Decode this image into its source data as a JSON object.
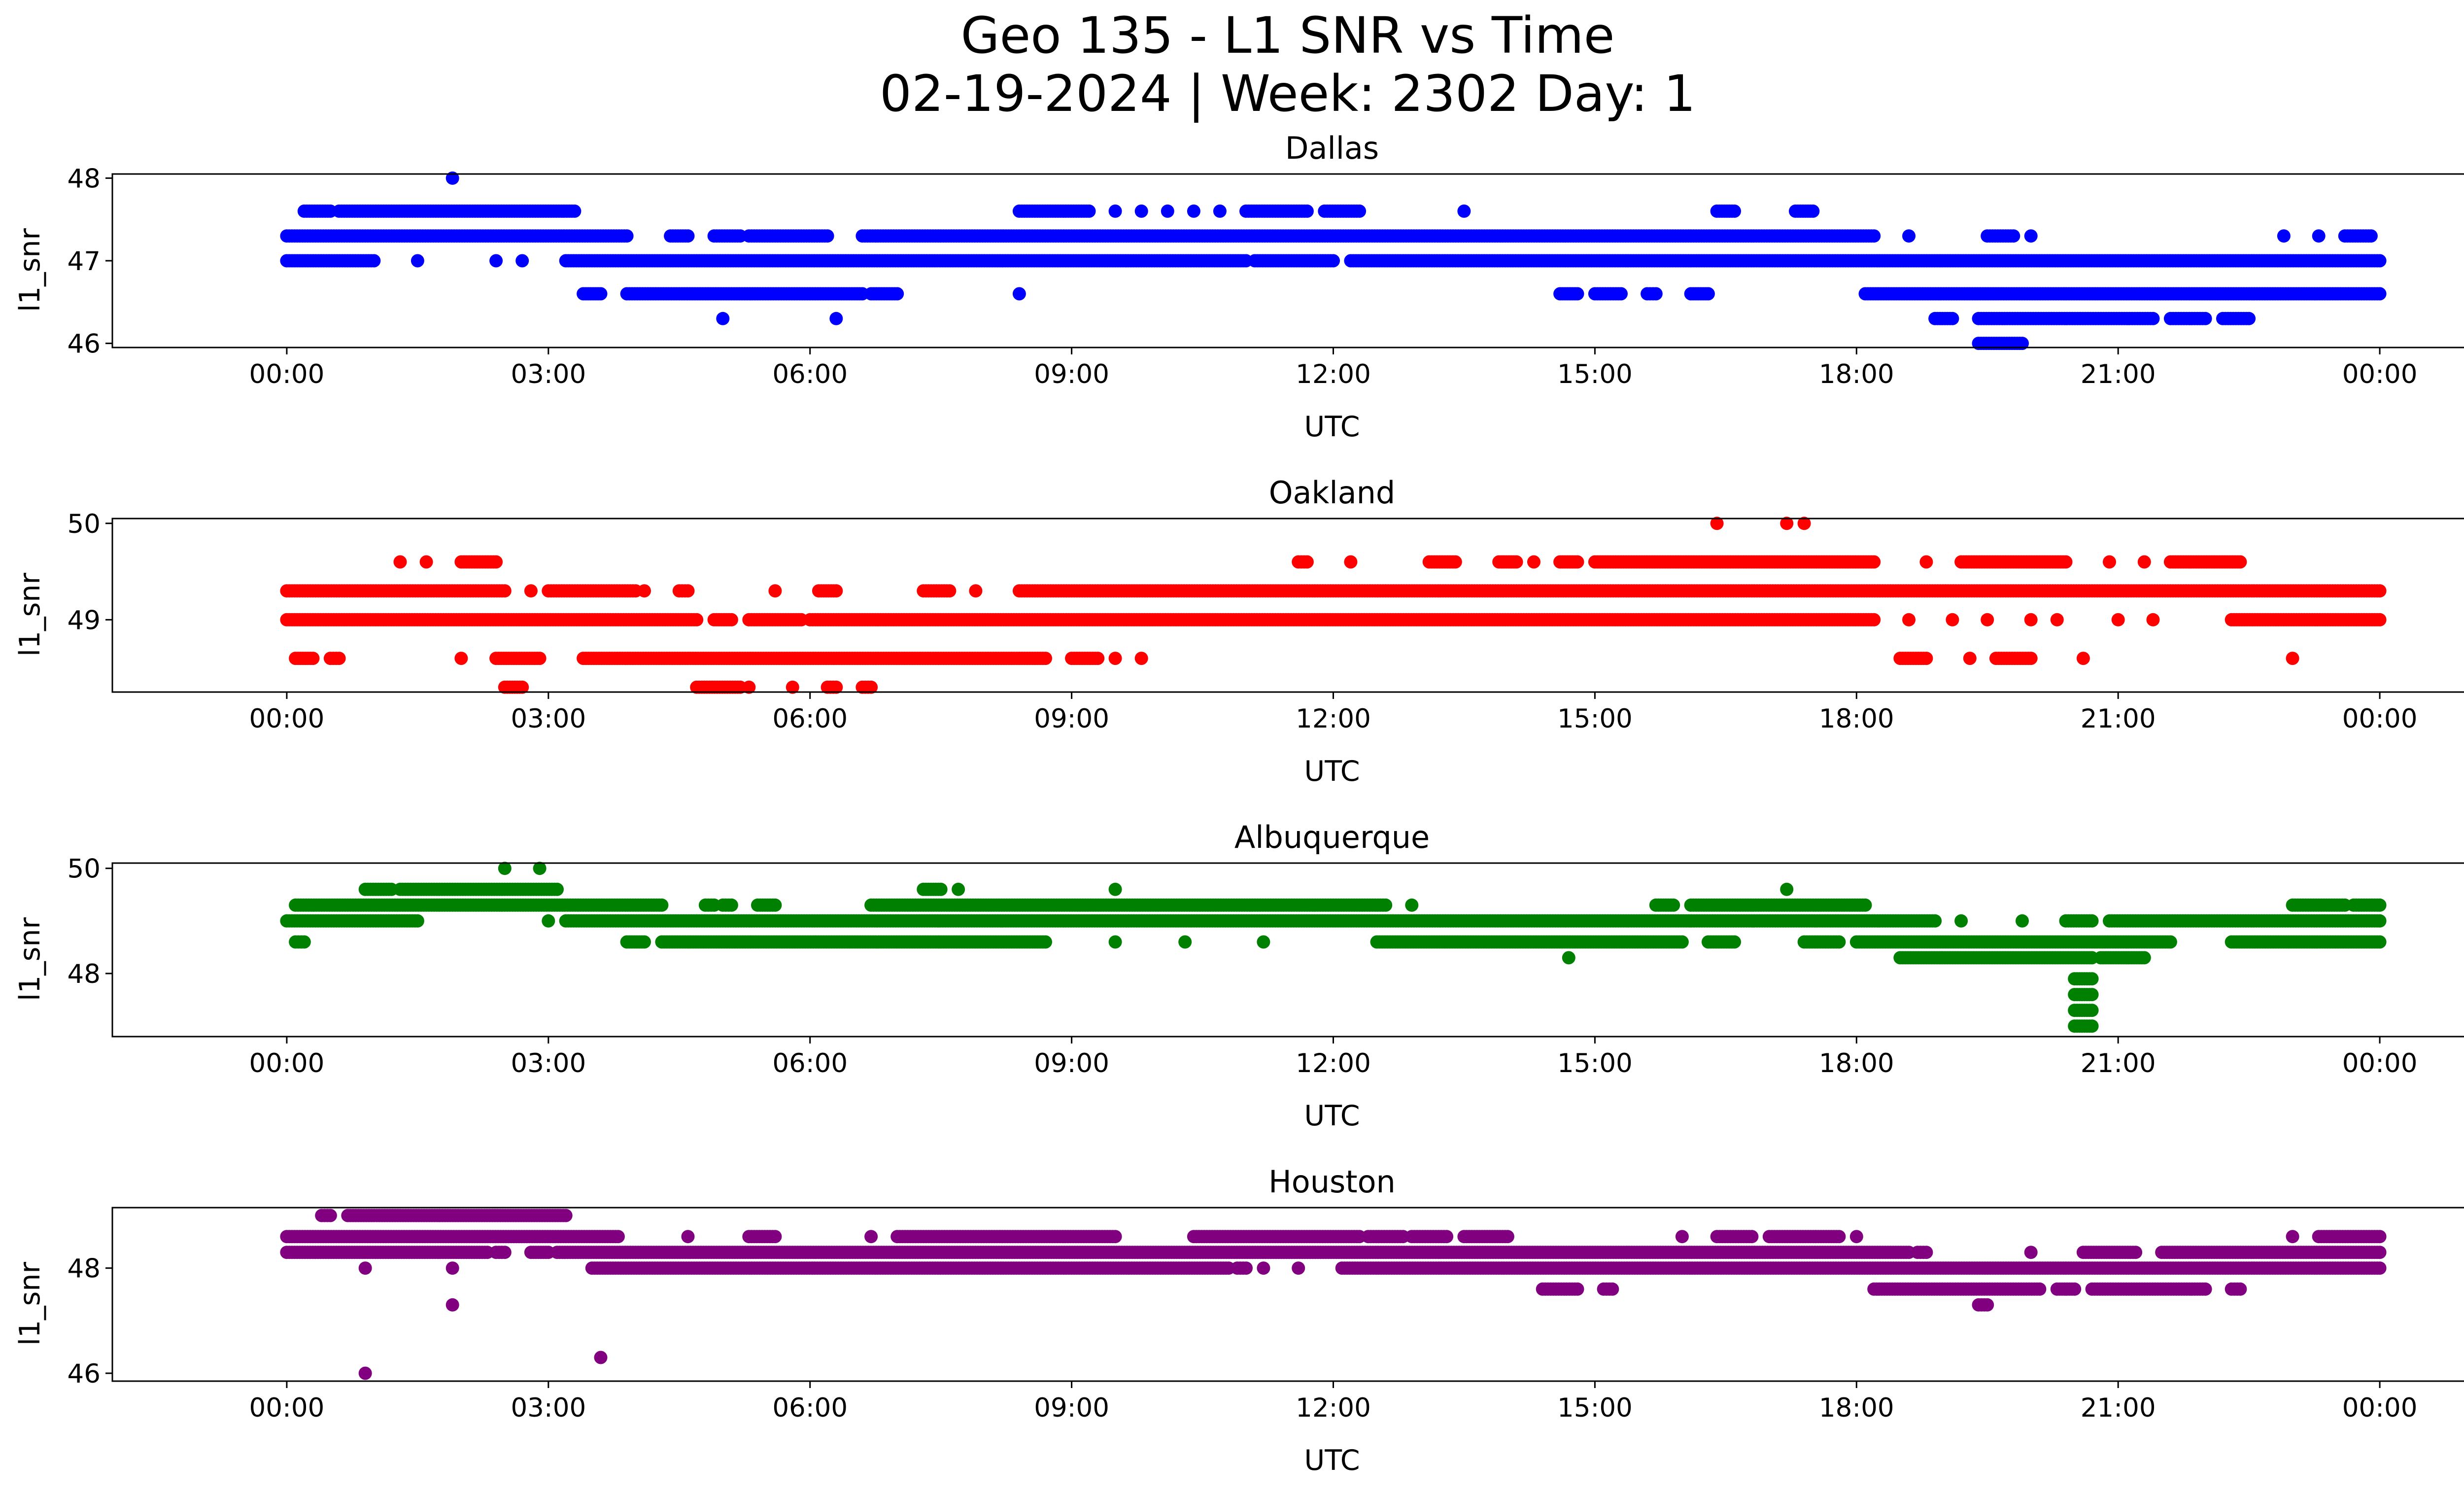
{
  "figure": {
    "title_line1": "Geo 135 - L1 SNR vs Time",
    "title_line2": "02-19-2024 | Week: 2302 Day: 1"
  },
  "chart_data": [
    {
      "type": "scatter",
      "title": "Dallas",
      "xlabel": "UTC",
      "ylabel": "l1_snr",
      "color": "#0000ff",
      "xlim": [
        -2.0,
        26.0
      ],
      "ylim": [
        45.95,
        48.05
      ],
      "xticks": [
        0,
        3,
        6,
        9,
        12,
        15,
        18,
        21,
        24
      ],
      "xtick_labels": [
        "00:00",
        "03:00",
        "06:00",
        "09:00",
        "12:00",
        "15:00",
        "18:00",
        "21:00",
        "00:00"
      ],
      "yticks": [
        46,
        47,
        48
      ],
      "ytick_labels": [
        "46",
        "47",
        "48"
      ],
      "series": [
        {
          "y": 47.3,
          "segments": [
            [
              0.0,
              3.9
            ],
            [
              4.4,
              4.6
            ],
            [
              4.9,
              5.2
            ],
            [
              5.3,
              6.2
            ],
            [
              6.6,
              18.2
            ],
            [
              18.6,
              18.6
            ],
            [
              19.5,
              19.8
            ],
            [
              20.0,
              20.0
            ],
            [
              22.9,
              22.9
            ],
            [
              23.3,
              23.3
            ],
            [
              23.6,
              23.9
            ]
          ]
        },
        {
          "y": 47.0,
          "segments": [
            [
              0.0,
              1.0
            ],
            [
              1.5,
              1.5
            ],
            [
              2.4,
              2.4
            ],
            [
              2.7,
              2.7
            ],
            [
              3.2,
              11.0
            ],
            [
              11.1,
              12.0
            ],
            [
              12.2,
              24.0
            ]
          ]
        },
        {
          "y": 47.6,
          "segments": [
            [
              0.2,
              0.5
            ],
            [
              0.6,
              3.3
            ],
            [
              8.4,
              9.2
            ],
            [
              9.5,
              9.5
            ],
            [
              9.8,
              9.8
            ],
            [
              10.1,
              10.1
            ],
            [
              10.4,
              10.4
            ],
            [
              10.7,
              10.7
            ],
            [
              11.0,
              11.7
            ],
            [
              11.9,
              12.3
            ],
            [
              13.5,
              13.5
            ],
            [
              16.4,
              16.6
            ],
            [
              17.3,
              17.5
            ]
          ]
        },
        {
          "y": 46.6,
          "segments": [
            [
              3.4,
              3.6
            ],
            [
              3.9,
              6.6
            ],
            [
              6.7,
              7.0
            ],
            [
              8.4,
              8.4
            ],
            [
              14.6,
              14.8
            ],
            [
              15.0,
              15.3
            ],
            [
              15.6,
              15.7
            ],
            [
              16.1,
              16.3
            ],
            [
              18.1,
              24.0
            ]
          ]
        },
        {
          "y": 46.3,
          "segments": [
            [
              5.0,
              5.0
            ],
            [
              6.3,
              6.3
            ],
            [
              18.9,
              19.1
            ],
            [
              19.4,
              21.4
            ],
            [
              21.6,
              22.0
            ],
            [
              22.2,
              22.5
            ]
          ]
        },
        {
          "y": 46.0,
          "segments": [
            [
              19.4,
              19.9
            ]
          ]
        },
        {
          "y": 48.0,
          "segments": [
            [
              1.9,
              1.9
            ]
          ]
        }
      ]
    },
    {
      "type": "scatter",
      "title": "Oakland",
      "xlabel": "UTC",
      "ylabel": "l1_snr",
      "color": "#ff0000",
      "xlim": [
        -2.0,
        26.0
      ],
      "ylim": [
        48.25,
        50.05
      ],
      "xticks": [
        0,
        3,
        6,
        9,
        12,
        15,
        18,
        21,
        24
      ],
      "xtick_labels": [
        "00:00",
        "03:00",
        "06:00",
        "09:00",
        "12:00",
        "15:00",
        "18:00",
        "21:00",
        "00:00"
      ],
      "yticks": [
        49,
        50
      ],
      "ytick_labels": [
        "49",
        "50"
      ],
      "series": [
        {
          "y": 49.3,
          "segments": [
            [
              0.0,
              2.5
            ],
            [
              2.8,
              2.8
            ],
            [
              3.0,
              4.0
            ],
            [
              4.1,
              4.1
            ],
            [
              4.5,
              4.6
            ],
            [
              5.6,
              5.6
            ],
            [
              6.1,
              6.3
            ],
            [
              7.3,
              7.6
            ],
            [
              7.9,
              7.9
            ],
            [
              8.4,
              24.0
            ]
          ]
        },
        {
          "y": 49.0,
          "segments": [
            [
              0.0,
              4.7
            ],
            [
              4.9,
              5.1
            ],
            [
              5.3,
              5.9
            ],
            [
              6.0,
              18.2
            ],
            [
              18.6,
              18.6
            ],
            [
              19.1,
              19.1
            ],
            [
              19.5,
              19.5
            ],
            [
              20.0,
              20.0
            ],
            [
              20.3,
              20.3
            ],
            [
              21.0,
              21.0
            ],
            [
              21.4,
              21.4
            ],
            [
              22.3,
              24.0
            ]
          ]
        },
        {
          "y": 49.6,
          "segments": [
            [
              1.3,
              1.3
            ],
            [
              1.6,
              1.6
            ],
            [
              2.0,
              2.4
            ],
            [
              11.6,
              11.7
            ],
            [
              12.2,
              12.2
            ],
            [
              13.1,
              13.4
            ],
            [
              13.9,
              14.1
            ],
            [
              14.3,
              14.3
            ],
            [
              14.6,
              14.8
            ],
            [
              15.0,
              18.2
            ],
            [
              18.8,
              18.8
            ],
            [
              19.2,
              20.4
            ],
            [
              20.9,
              20.9
            ],
            [
              21.3,
              21.3
            ],
            [
              21.6,
              22.4
            ]
          ]
        },
        {
          "y": 48.6,
          "segments": [
            [
              0.1,
              0.3
            ],
            [
              0.5,
              0.6
            ],
            [
              2.0,
              2.0
            ],
            [
              2.4,
              2.9
            ],
            [
              3.4,
              8.7
            ],
            [
              9.0,
              9.3
            ],
            [
              9.5,
              9.5
            ],
            [
              9.8,
              9.8
            ],
            [
              18.5,
              18.8
            ],
            [
              19.3,
              19.3
            ],
            [
              19.6,
              20.0
            ],
            [
              20.6,
              20.6
            ],
            [
              23.0,
              23.0
            ]
          ]
        },
        {
          "y": 48.3,
          "segments": [
            [
              2.5,
              2.7
            ],
            [
              4.7,
              5.2
            ],
            [
              5.3,
              5.3
            ],
            [
              5.8,
              5.8
            ],
            [
              6.2,
              6.3
            ],
            [
              6.6,
              6.7
            ]
          ]
        },
        {
          "y": 50.0,
          "segments": [
            [
              16.4,
              16.4
            ],
            [
              17.2,
              17.2
            ],
            [
              17.4,
              17.4
            ]
          ]
        }
      ]
    },
    {
      "type": "scatter",
      "title": "Albuquerque",
      "xlabel": "UTC",
      "ylabel": "l1_snr",
      "color": "#008000",
      "xlim": [
        -2.0,
        26.0
      ],
      "ylim": [
        46.8,
        50.1
      ],
      "xticks": [
        0,
        3,
        6,
        9,
        12,
        15,
        18,
        21,
        24
      ],
      "xtick_labels": [
        "00:00",
        "03:00",
        "06:00",
        "09:00",
        "12:00",
        "15:00",
        "18:00",
        "21:00",
        "00:00"
      ],
      "yticks": [
        48,
        50
      ],
      "ytick_labels": [
        "48",
        "50"
      ],
      "series": [
        {
          "y": 49.3,
          "segments": [
            [
              0.1,
              4.3
            ],
            [
              4.8,
              4.9
            ],
            [
              5.0,
              5.1
            ],
            [
              5.4,
              5.6
            ],
            [
              6.7,
              12.6
            ],
            [
              12.9,
              12.9
            ],
            [
              15.7,
              15.9
            ],
            [
              16.1,
              18.1
            ],
            [
              23.0,
              23.6
            ],
            [
              23.7,
              24.0
            ]
          ]
        },
        {
          "y": 49.0,
          "segments": [
            [
              0.0,
              1.5
            ],
            [
              3.0,
              3.0
            ],
            [
              3.2,
              18.9
            ],
            [
              19.2,
              19.2
            ],
            [
              19.9,
              19.9
            ],
            [
              20.4,
              20.7
            ],
            [
              20.9,
              24.0
            ]
          ]
        },
        {
          "y": 49.6,
          "segments": [
            [
              0.9,
              1.2
            ],
            [
              1.3,
              3.1
            ],
            [
              7.3,
              7.5
            ],
            [
              7.7,
              7.7
            ],
            [
              9.5,
              9.5
            ],
            [
              17.2,
              17.2
            ]
          ]
        },
        {
          "y": 48.6,
          "segments": [
            [
              0.1,
              0.2
            ],
            [
              3.9,
              4.1
            ],
            [
              4.3,
              8.7
            ],
            [
              9.5,
              9.5
            ],
            [
              10.3,
              10.3
            ],
            [
              11.2,
              11.2
            ],
            [
              12.5,
              16.0
            ],
            [
              16.3,
              16.6
            ],
            [
              17.4,
              17.8
            ],
            [
              18.0,
              21.6
            ],
            [
              22.3,
              24.0
            ]
          ]
        },
        {
          "y": 48.3,
          "segments": [
            [
              18.5,
              20.7
            ],
            [
              20.8,
              21.3
            ],
            [
              14.7,
              14.7
            ]
          ]
        },
        {
          "y": 47.9,
          "segments": [
            [
              20.5,
              20.7
            ]
          ]
        },
        {
          "y": 47.6,
          "segments": [
            [
              20.5,
              20.7
            ]
          ]
        },
        {
          "y": 47.3,
          "segments": [
            [
              20.5,
              20.7
            ]
          ]
        },
        {
          "y": 47.0,
          "segments": [
            [
              20.5,
              20.7
            ]
          ]
        },
        {
          "y": 50.0,
          "segments": [
            [
              2.5,
              2.5
            ],
            [
              2.9,
              2.9
            ]
          ]
        }
      ]
    },
    {
      "type": "scatter",
      "title": "Houston",
      "xlabel": "UTC",
      "ylabel": "l1_snr",
      "color": "#800080",
      "xlim": [
        -2.0,
        26.0
      ],
      "ylim": [
        45.85,
        49.15
      ],
      "xticks": [
        0,
        3,
        6,
        9,
        12,
        15,
        18,
        21,
        24
      ],
      "xtick_labels": [
        "00:00",
        "03:00",
        "06:00",
        "09:00",
        "12:00",
        "15:00",
        "18:00",
        "21:00",
        "00:00"
      ],
      "yticks": [
        46,
        48
      ],
      "ytick_labels": [
        "46",
        "48"
      ],
      "series": [
        {
          "y": 48.3,
          "segments": [
            [
              0.0,
              2.3
            ],
            [
              2.4,
              2.5
            ],
            [
              2.8,
              3.0
            ],
            [
              3.1,
              18.6
            ],
            [
              18.7,
              18.8
            ],
            [
              20.0,
              20.0
            ],
            [
              20.6,
              21.2
            ],
            [
              21.5,
              24.0
            ]
          ]
        },
        {
          "y": 48.6,
          "segments": [
            [
              0.0,
              3.8
            ],
            [
              4.6,
              4.6
            ],
            [
              5.3,
              5.6
            ],
            [
              6.7,
              6.7
            ],
            [
              7.0,
              9.5
            ],
            [
              10.4,
              12.3
            ],
            [
              12.4,
              12.8
            ],
            [
              12.9,
              13.3
            ],
            [
              13.5,
              14.0
            ],
            [
              16.0,
              16.0
            ],
            [
              16.4,
              16.8
            ],
            [
              17.0,
              17.8
            ],
            [
              18.0,
              18.0
            ],
            [
              23.0,
              23.0
            ],
            [
              23.3,
              24.0
            ]
          ]
        },
        {
          "y": 48.0,
          "segments": [
            [
              0.9,
              0.9
            ],
            [
              1.9,
              1.9
            ],
            [
              3.5,
              10.8
            ],
            [
              10.9,
              11.0
            ],
            [
              11.2,
              11.2
            ],
            [
              11.6,
              11.6
            ],
            [
              12.1,
              24.0
            ]
          ]
        },
        {
          "y": 49.0,
          "segments": [
            [
              0.4,
              0.5
            ],
            [
              0.7,
              3.2
            ]
          ]
        },
        {
          "y": 47.6,
          "segments": [
            [
              14.4,
              14.8
            ],
            [
              15.1,
              15.2
            ],
            [
              18.2,
              20.1
            ],
            [
              20.3,
              20.5
            ],
            [
              20.7,
              22.0
            ],
            [
              22.3,
              22.4
            ]
          ]
        },
        {
          "y": 47.3,
          "segments": [
            [
              1.9,
              1.9
            ],
            [
              19.4,
              19.5
            ]
          ]
        },
        {
          "y": 46.3,
          "segments": [
            [
              3.6,
              3.6
            ]
          ]
        },
        {
          "y": 46.0,
          "segments": [
            [
              0.9,
              0.9
            ]
          ]
        }
      ]
    }
  ]
}
